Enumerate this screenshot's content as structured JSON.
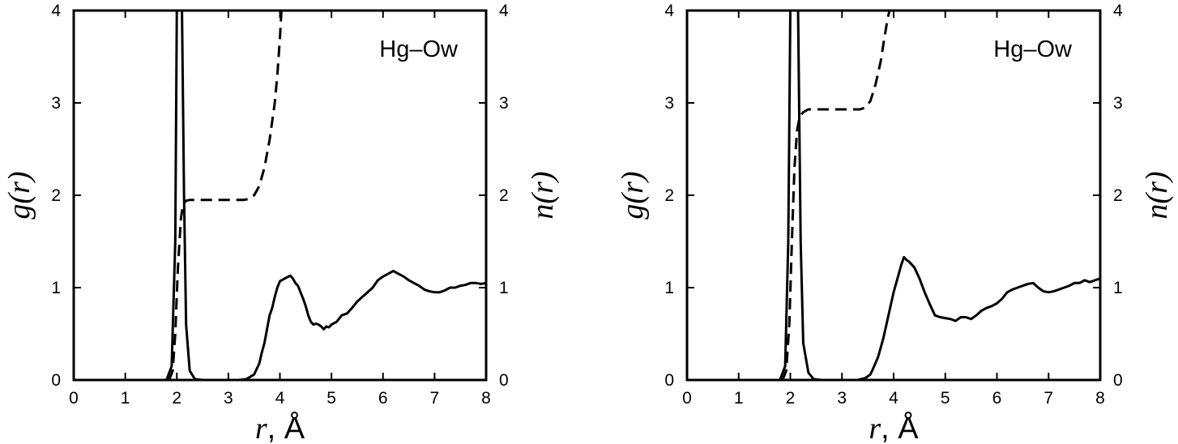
{
  "chart_data": [
    {
      "type": "line",
      "annotation": "Hg–Ow",
      "xlabel": "r, Å",
      "ylabel": "g(r)",
      "y2label": "n(r)",
      "xlim": [
        0,
        8
      ],
      "ylim": [
        0,
        4
      ],
      "y2lim": [
        0,
        4
      ],
      "xticks": [
        "0",
        "1",
        "2",
        "3",
        "4",
        "5",
        "6",
        "7",
        "8"
      ],
      "yticks": [
        "0",
        "1",
        "2",
        "3",
        "4"
      ],
      "y2ticks": [
        "0",
        "1",
        "2",
        "3",
        "4"
      ],
      "grid": false,
      "series": [
        {
          "style": "solid",
          "axis": "left",
          "points": [
            [
              0,
              0
            ],
            [
              1.8,
              0
            ],
            [
              1.9,
              0.15
            ],
            [
              1.97,
              1.5
            ],
            [
              2.0,
              4.0
            ],
            [
              2.02,
              6.0
            ],
            [
              2.06,
              5.0
            ],
            [
              2.1,
              4.0
            ],
            [
              2.14,
              2.0
            ],
            [
              2.18,
              0.6
            ],
            [
              2.25,
              0.1
            ],
            [
              2.35,
              0.01
            ],
            [
              2.5,
              0
            ],
            [
              3.2,
              0
            ],
            [
              3.35,
              0.01
            ],
            [
              3.5,
              0.06
            ],
            [
              3.6,
              0.18
            ],
            [
              3.65,
              0.3
            ],
            [
              3.7,
              0.4
            ],
            [
              3.75,
              0.55
            ],
            [
              3.8,
              0.7
            ],
            [
              3.85,
              0.78
            ],
            [
              3.9,
              0.9
            ],
            [
              3.95,
              1.0
            ],
            [
              4.0,
              1.07
            ],
            [
              4.1,
              1.1
            ],
            [
              4.2,
              1.13
            ],
            [
              4.25,
              1.1
            ],
            [
              4.3,
              1.05
            ],
            [
              4.35,
              1.02
            ],
            [
              4.4,
              0.95
            ],
            [
              4.45,
              0.88
            ],
            [
              4.5,
              0.8
            ],
            [
              4.55,
              0.7
            ],
            [
              4.6,
              0.63
            ],
            [
              4.65,
              0.6
            ],
            [
              4.7,
              0.61
            ],
            [
              4.75,
              0.6
            ],
            [
              4.8,
              0.58
            ],
            [
              4.85,
              0.55
            ],
            [
              4.9,
              0.58
            ],
            [
              4.95,
              0.57
            ],
            [
              5.0,
              0.6
            ],
            [
              5.1,
              0.63
            ],
            [
              5.2,
              0.7
            ],
            [
              5.3,
              0.72
            ],
            [
              5.4,
              0.78
            ],
            [
              5.5,
              0.85
            ],
            [
              5.6,
              0.9
            ],
            [
              5.7,
              0.95
            ],
            [
              5.8,
              1.0
            ],
            [
              5.9,
              1.08
            ],
            [
              6.0,
              1.12
            ],
            [
              6.1,
              1.15
            ],
            [
              6.2,
              1.18
            ],
            [
              6.3,
              1.15
            ],
            [
              6.4,
              1.12
            ],
            [
              6.5,
              1.08
            ],
            [
              6.6,
              1.05
            ],
            [
              6.7,
              1.02
            ],
            [
              6.8,
              0.98
            ],
            [
              6.9,
              0.96
            ],
            [
              7.0,
              0.95
            ],
            [
              7.1,
              0.95
            ],
            [
              7.2,
              0.97
            ],
            [
              7.3,
              1.0
            ],
            [
              7.4,
              1.0
            ],
            [
              7.5,
              1.02
            ],
            [
              7.6,
              1.03
            ],
            [
              7.7,
              1.05
            ],
            [
              7.8,
              1.05
            ],
            [
              7.9,
              1.04
            ],
            [
              8.0,
              1.05
            ]
          ]
        },
        {
          "style": "dashed",
          "axis": "right",
          "points": [
            [
              1.85,
              0
            ],
            [
              1.92,
              0.1
            ],
            [
              1.97,
              0.5
            ],
            [
              2.02,
              1.2
            ],
            [
              2.08,
              1.75
            ],
            [
              2.12,
              1.9
            ],
            [
              2.18,
              1.94
            ],
            [
              2.25,
              1.95
            ],
            [
              3.3,
              1.95
            ],
            [
              3.4,
              1.96
            ],
            [
              3.5,
              2.0
            ],
            [
              3.6,
              2.1
            ],
            [
              3.7,
              2.3
            ],
            [
              3.8,
              2.6
            ],
            [
              3.9,
              3.0
            ],
            [
              3.95,
              3.3
            ],
            [
              4.0,
              3.7
            ],
            [
              4.03,
              4.0
            ]
          ]
        }
      ]
    },
    {
      "type": "line",
      "annotation": "Hg–Ow",
      "xlabel": "r, Å",
      "ylabel": "g(r)",
      "y2label": "n(r)",
      "xlim": [
        0,
        8
      ],
      "ylim": [
        0,
        4
      ],
      "y2lim": [
        0,
        4
      ],
      "xticks": [
        "0",
        "1",
        "2",
        "3",
        "4",
        "5",
        "6",
        "7",
        "8"
      ],
      "yticks": [
        "0",
        "1",
        "2",
        "3",
        "4"
      ],
      "y2ticks": [
        "0",
        "1",
        "2",
        "3",
        "4"
      ],
      "grid": false,
      "series": [
        {
          "style": "solid",
          "axis": "left",
          "points": [
            [
              0,
              0
            ],
            [
              1.8,
              0
            ],
            [
              1.9,
              0.15
            ],
            [
              1.96,
              1.5
            ],
            [
              2.0,
              4.0
            ],
            [
              2.05,
              6.0
            ],
            [
              2.1,
              5.5
            ],
            [
              2.15,
              4.0
            ],
            [
              2.2,
              1.5
            ],
            [
              2.25,
              0.4
            ],
            [
              2.35,
              0.08
            ],
            [
              2.45,
              0.01
            ],
            [
              2.6,
              0
            ],
            [
              3.3,
              0
            ],
            [
              3.45,
              0.02
            ],
            [
              3.55,
              0.06
            ],
            [
              3.6,
              0.12
            ],
            [
              3.7,
              0.25
            ],
            [
              3.8,
              0.45
            ],
            [
              3.9,
              0.7
            ],
            [
              4.0,
              0.95
            ],
            [
              4.1,
              1.15
            ],
            [
              4.15,
              1.25
            ],
            [
              4.2,
              1.33
            ],
            [
              4.25,
              1.3
            ],
            [
              4.3,
              1.28
            ],
            [
              4.4,
              1.22
            ],
            [
              4.5,
              1.1
            ],
            [
              4.6,
              0.95
            ],
            [
              4.7,
              0.82
            ],
            [
              4.8,
              0.7
            ],
            [
              4.9,
              0.68
            ],
            [
              5.0,
              0.67
            ],
            [
              5.1,
              0.66
            ],
            [
              5.2,
              0.64
            ],
            [
              5.3,
              0.68
            ],
            [
              5.4,
              0.68
            ],
            [
              5.5,
              0.66
            ],
            [
              5.6,
              0.7
            ],
            [
              5.7,
              0.75
            ],
            [
              5.8,
              0.78
            ],
            [
              5.9,
              0.8
            ],
            [
              6.0,
              0.83
            ],
            [
              6.1,
              0.88
            ],
            [
              6.2,
              0.95
            ],
            [
              6.3,
              0.98
            ],
            [
              6.4,
              1.0
            ],
            [
              6.5,
              1.02
            ],
            [
              6.6,
              1.04
            ],
            [
              6.7,
              1.05
            ],
            [
              6.8,
              1.0
            ],
            [
              6.9,
              0.96
            ],
            [
              7.0,
              0.95
            ],
            [
              7.1,
              0.96
            ],
            [
              7.2,
              0.98
            ],
            [
              7.3,
              1.0
            ],
            [
              7.4,
              1.02
            ],
            [
              7.5,
              1.05
            ],
            [
              7.6,
              1.05
            ],
            [
              7.7,
              1.08
            ],
            [
              7.8,
              1.06
            ],
            [
              7.9,
              1.08
            ],
            [
              8.0,
              1.1
            ]
          ]
        },
        {
          "style": "dashed",
          "axis": "right",
          "points": [
            [
              1.85,
              0
            ],
            [
              1.92,
              0.1
            ],
            [
              1.98,
              0.6
            ],
            [
              2.03,
              1.5
            ],
            [
              2.08,
              2.3
            ],
            [
              2.13,
              2.7
            ],
            [
              2.18,
              2.85
            ],
            [
              2.25,
              2.9
            ],
            [
              2.35,
              2.93
            ],
            [
              3.35,
              2.93
            ],
            [
              3.45,
              2.95
            ],
            [
              3.55,
              3.02
            ],
            [
              3.65,
              3.2
            ],
            [
              3.75,
              3.45
            ],
            [
              3.82,
              3.7
            ],
            [
              3.88,
              3.9
            ],
            [
              3.92,
              4.0
            ]
          ]
        }
      ]
    }
  ]
}
